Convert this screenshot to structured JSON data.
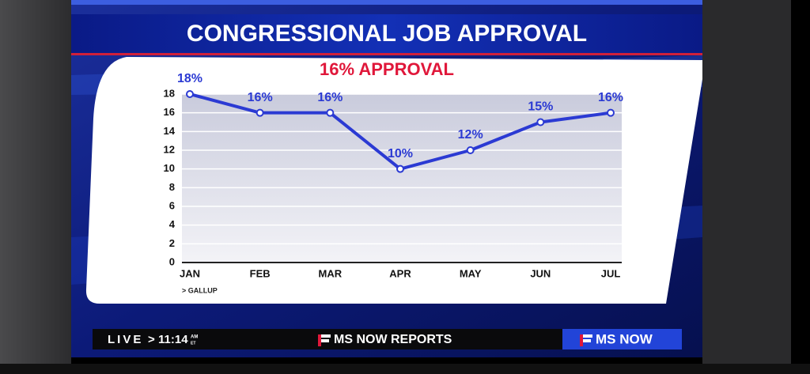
{
  "chart_data": {
    "type": "line",
    "title": "CONGRESSIONAL JOB APPROVAL",
    "subtitle": "16% APPROVAL",
    "categories": [
      "JAN",
      "FEB",
      "MAR",
      "APR",
      "MAY",
      "JUN",
      "JUL"
    ],
    "series": [
      {
        "color": "#2b3ad3",
        "values": [
          18,
          16,
          16,
          10,
          12,
          15,
          16
        ],
        "value_labels": [
          "18%",
          "16%",
          "16%",
          "10%",
          "12%",
          "15%",
          "16%"
        ]
      }
    ],
    "ylim": [
      0,
      18
    ],
    "yticks": [
      0,
      2,
      4,
      6,
      8,
      10,
      12,
      14,
      16,
      18
    ],
    "grid": true,
    "source": "> GALLUP"
  },
  "broadcast": {
    "live": "LIVE",
    "separator": ">",
    "time": "11:14",
    "meridiem": "AM",
    "zone": "ET",
    "program": "MS NOW REPORTS",
    "network": "MS NOW"
  }
}
